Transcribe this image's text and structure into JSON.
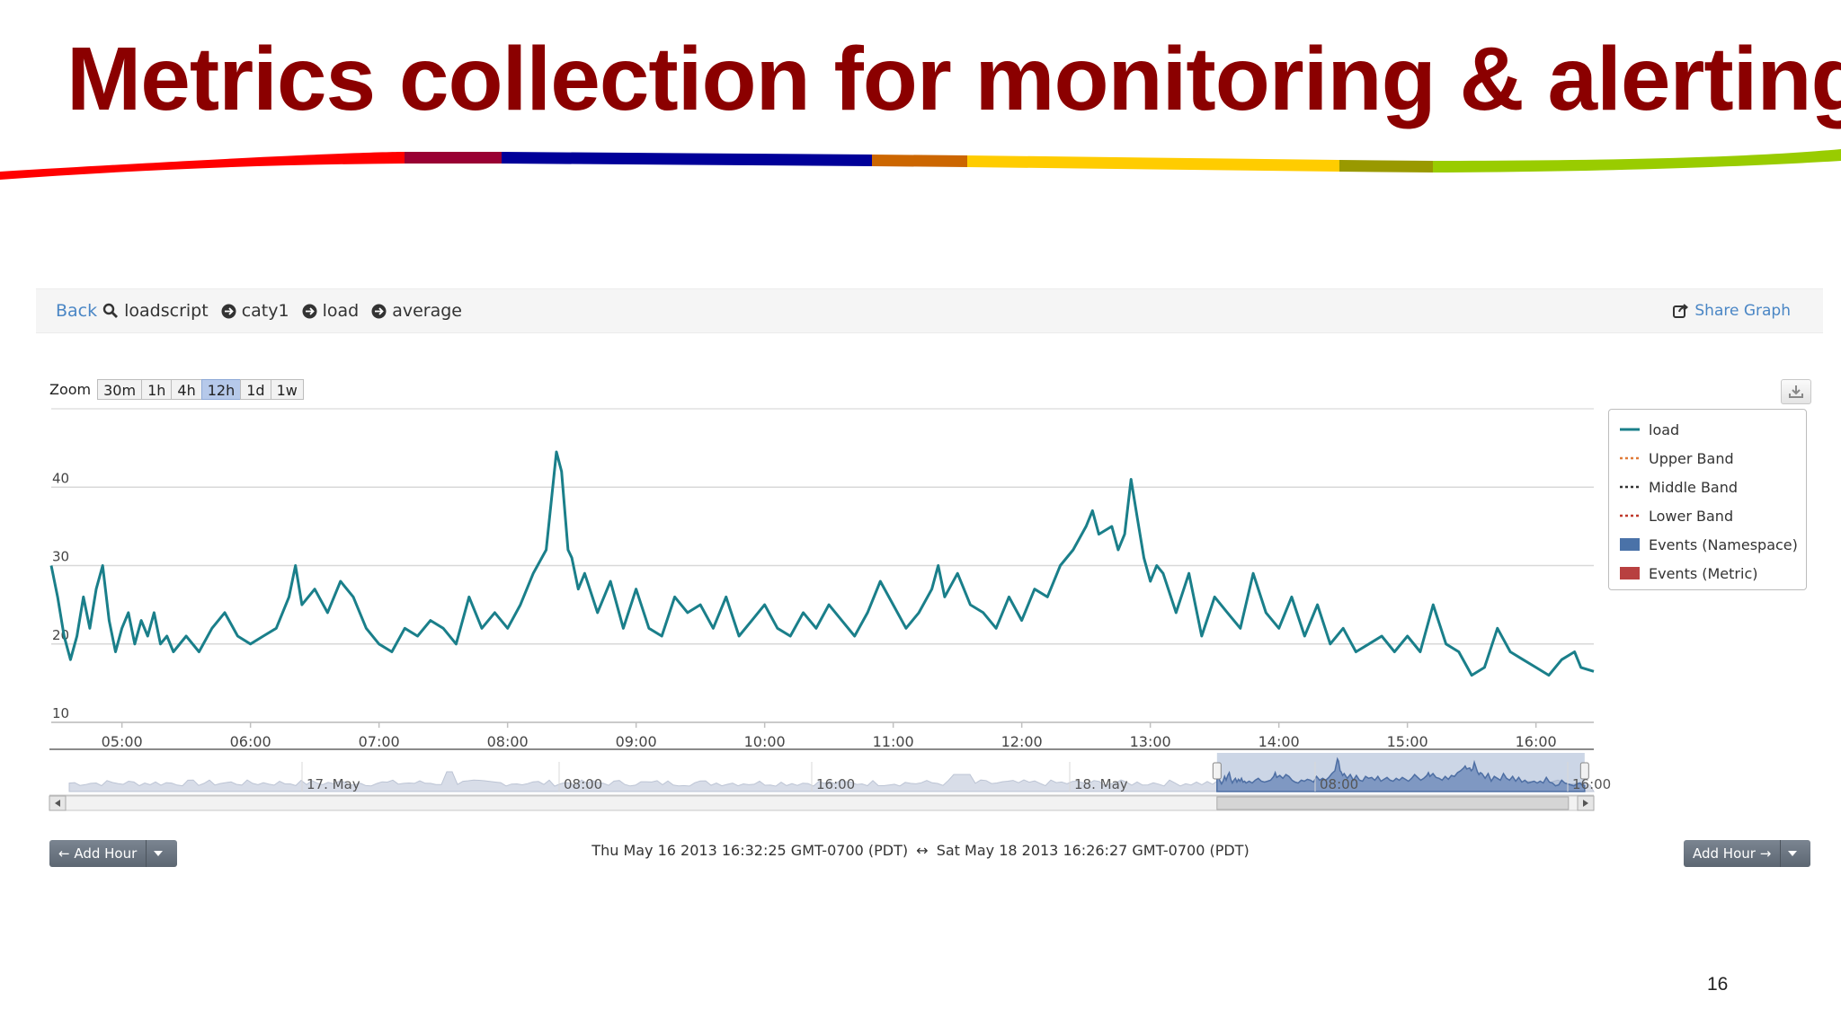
{
  "slide": {
    "title": "Metrics collection for monitoring & alerting",
    "page_number": "16"
  },
  "breadcrumb": {
    "back": "Back",
    "items": [
      "loadscript",
      "caty1",
      "load",
      "average"
    ],
    "share": "Share Graph"
  },
  "zoom": {
    "label": "Zoom",
    "options": [
      "30m",
      "1h",
      "4h",
      "12h",
      "1d",
      "1w"
    ],
    "active": "12h"
  },
  "legend": [
    {
      "name": "load",
      "color": "#1a7f8a",
      "style": "solid"
    },
    {
      "name": "Upper Band",
      "color": "#e07b39",
      "style": "dotted"
    },
    {
      "name": "Middle Band",
      "color": "#333333",
      "style": "dotted"
    },
    {
      "name": "Lower Band",
      "color": "#c0392b",
      "style": "dotted"
    },
    {
      "name": "Events (Namespace)",
      "color": "#4a72a8",
      "style": "box"
    },
    {
      "name": "Events (Metric)",
      "color": "#b84040",
      "style": "box"
    }
  ],
  "controls": {
    "add_hour_left": "← Add Hour",
    "add_hour_right": "Add Hour →",
    "range_start": "Thu May 16 2013 16:32:25 GMT-0700 (PDT)",
    "range_arrow": "↔",
    "range_end": "Sat May 18 2013 16:26:27 GMT-0700 (PDT)"
  },
  "colors": {
    "title": "#8b0000",
    "link": "#4a86c5",
    "series": "#1a7f8a"
  },
  "chart_data": {
    "type": "line",
    "series": [
      {
        "name": "load",
        "color": "#1a7f8a"
      }
    ],
    "x_ticks": [
      "05:00",
      "06:00",
      "07:00",
      "08:00",
      "09:00",
      "10:00",
      "11:00",
      "12:00",
      "13:00",
      "14:00",
      "15:00",
      "16:00"
    ],
    "x_range_hours": [
      4.45,
      16.45
    ],
    "y_ticks": [
      10,
      20,
      30,
      40
    ],
    "ylim": [
      10,
      50
    ],
    "grid": true,
    "legend": "right",
    "points": [
      [
        4.45,
        30
      ],
      [
        4.5,
        26
      ],
      [
        4.55,
        21
      ],
      [
        4.6,
        18
      ],
      [
        4.65,
        21
      ],
      [
        4.7,
        26
      ],
      [
        4.75,
        22
      ],
      [
        4.8,
        27
      ],
      [
        4.85,
        30
      ],
      [
        4.9,
        23
      ],
      [
        4.95,
        19
      ],
      [
        5.0,
        22
      ],
      [
        5.05,
        24
      ],
      [
        5.1,
        20
      ],
      [
        5.15,
        23
      ],
      [
        5.2,
        21
      ],
      [
        5.25,
        24
      ],
      [
        5.3,
        20
      ],
      [
        5.35,
        21
      ],
      [
        5.4,
        19
      ],
      [
        5.5,
        21
      ],
      [
        5.6,
        19
      ],
      [
        5.7,
        22
      ],
      [
        5.8,
        24
      ],
      [
        5.9,
        21
      ],
      [
        6.0,
        20
      ],
      [
        6.1,
        21
      ],
      [
        6.2,
        22
      ],
      [
        6.3,
        26
      ],
      [
        6.35,
        30
      ],
      [
        6.4,
        25
      ],
      [
        6.5,
        27
      ],
      [
        6.6,
        24
      ],
      [
        6.7,
        28
      ],
      [
        6.8,
        26
      ],
      [
        6.9,
        22
      ],
      [
        7.0,
        20
      ],
      [
        7.1,
        19
      ],
      [
        7.2,
        22
      ],
      [
        7.3,
        21
      ],
      [
        7.4,
        23
      ],
      [
        7.5,
        22
      ],
      [
        7.6,
        20
      ],
      [
        7.7,
        26
      ],
      [
        7.8,
        22
      ],
      [
        7.9,
        24
      ],
      [
        8.0,
        22
      ],
      [
        8.1,
        25
      ],
      [
        8.2,
        29
      ],
      [
        8.3,
        32
      ],
      [
        8.38,
        44.5
      ],
      [
        8.42,
        42
      ],
      [
        8.47,
        32
      ],
      [
        8.5,
        31
      ],
      [
        8.55,
        27
      ],
      [
        8.6,
        29
      ],
      [
        8.7,
        24
      ],
      [
        8.8,
        28
      ],
      [
        8.9,
        22
      ],
      [
        9.0,
        27
      ],
      [
        9.1,
        22
      ],
      [
        9.2,
        21
      ],
      [
        9.3,
        26
      ],
      [
        9.4,
        24
      ],
      [
        9.5,
        25
      ],
      [
        9.6,
        22
      ],
      [
        9.7,
        26
      ],
      [
        9.8,
        21
      ],
      [
        9.9,
        23
      ],
      [
        10.0,
        25
      ],
      [
        10.1,
        22
      ],
      [
        10.2,
        21
      ],
      [
        10.3,
        24
      ],
      [
        10.4,
        22
      ],
      [
        10.5,
        25
      ],
      [
        10.6,
        23
      ],
      [
        10.7,
        21
      ],
      [
        10.8,
        24
      ],
      [
        10.9,
        28
      ],
      [
        11.0,
        25
      ],
      [
        11.1,
        22
      ],
      [
        11.2,
        24
      ],
      [
        11.3,
        27
      ],
      [
        11.35,
        30
      ],
      [
        11.4,
        26
      ],
      [
        11.5,
        29
      ],
      [
        11.6,
        25
      ],
      [
        11.7,
        24
      ],
      [
        11.8,
        22
      ],
      [
        11.9,
        26
      ],
      [
        12.0,
        23
      ],
      [
        12.1,
        27
      ],
      [
        12.2,
        26
      ],
      [
        12.3,
        30
      ],
      [
        12.4,
        32
      ],
      [
        12.5,
        35
      ],
      [
        12.55,
        37
      ],
      [
        12.6,
        34
      ],
      [
        12.7,
        35
      ],
      [
        12.75,
        32
      ],
      [
        12.8,
        34
      ],
      [
        12.85,
        41
      ],
      [
        12.9,
        36
      ],
      [
        12.95,
        31
      ],
      [
        13.0,
        28
      ],
      [
        13.05,
        30
      ],
      [
        13.1,
        29
      ],
      [
        13.2,
        24
      ],
      [
        13.3,
        29
      ],
      [
        13.4,
        21
      ],
      [
        13.5,
        26
      ],
      [
        13.6,
        24
      ],
      [
        13.7,
        22
      ],
      [
        13.8,
        29
      ],
      [
        13.9,
        24
      ],
      [
        14.0,
        22
      ],
      [
        14.1,
        26
      ],
      [
        14.2,
        21
      ],
      [
        14.3,
        25
      ],
      [
        14.4,
        20
      ],
      [
        14.5,
        22
      ],
      [
        14.6,
        19
      ],
      [
        14.7,
        20
      ],
      [
        14.8,
        21
      ],
      [
        14.9,
        19
      ],
      [
        15.0,
        21
      ],
      [
        15.1,
        19
      ],
      [
        15.2,
        25
      ],
      [
        15.3,
        20
      ],
      [
        15.4,
        19
      ],
      [
        15.5,
        16
      ],
      [
        15.6,
        17
      ],
      [
        15.7,
        22
      ],
      [
        15.8,
        19
      ],
      [
        15.9,
        18
      ],
      [
        16.0,
        17
      ],
      [
        16.1,
        16
      ],
      [
        16.2,
        18
      ],
      [
        16.3,
        19
      ],
      [
        16.35,
        17
      ],
      [
        16.45,
        16.5
      ]
    ],
    "navigator": {
      "labels": [
        "17. May",
        "08:00",
        "16:00",
        "18. May",
        "08:00",
        "16:00"
      ],
      "selected_fraction": [
        0.744,
        0.994
      ]
    }
  }
}
